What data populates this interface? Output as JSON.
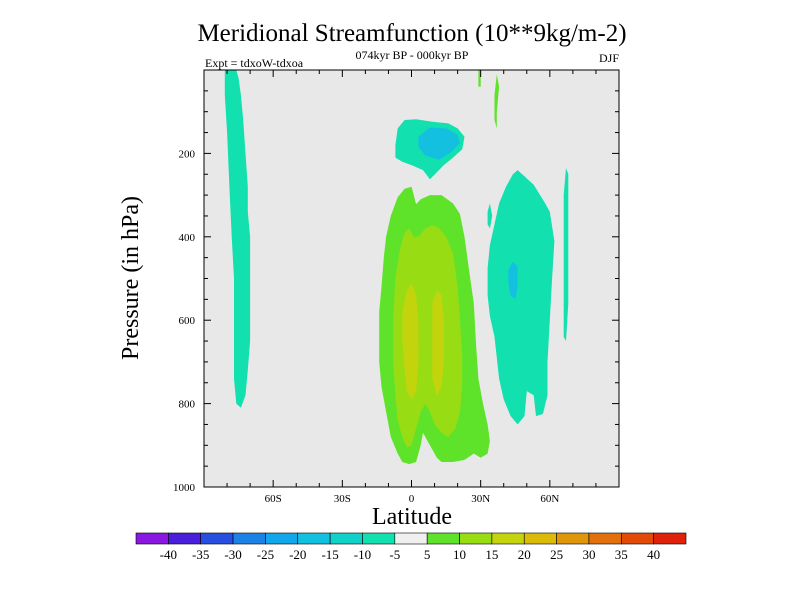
{
  "chart_data": {
    "type": "heatmap",
    "title": "Meridional Streamfunction (10**9kg/m-2)",
    "subtitle": "074kyr BP - 000kyr BP",
    "experiment_label": "Expt = tdxoW-tdxoa",
    "season": "DJF",
    "xlabel": "Latitude",
    "ylabel": "Pressure (in hPa)",
    "xlim": [
      -90,
      90
    ],
    "ylim": [
      1000,
      0
    ],
    "x_ticks": [
      {
        "value": -60,
        "label": "60S"
      },
      {
        "value": -30,
        "label": "30S"
      },
      {
        "value": 0,
        "label": "0"
      },
      {
        "value": 30,
        "label": "30N"
      },
      {
        "value": 60,
        "label": "60N"
      }
    ],
    "y_ticks": [
      {
        "value": 200,
        "label": "200"
      },
      {
        "value": 400,
        "label": "400"
      },
      {
        "value": 600,
        "label": "600"
      },
      {
        "value": 800,
        "label": "800"
      },
      {
        "value": 1000,
        "label": "1000"
      }
    ],
    "background_color": "#e8e8e8",
    "colorbar": {
      "levels": [
        -40,
        -35,
        -30,
        -25,
        -20,
        -15,
        -10,
        -5,
        5,
        10,
        15,
        20,
        25,
        30,
        35,
        40
      ],
      "labels": [
        "-40",
        "-35",
        "-30",
        "-25",
        "-20",
        "-15",
        "-10",
        "-5",
        "5",
        "10",
        "15",
        "20",
        "25",
        "30",
        "35",
        "40"
      ],
      "colors": [
        "#8a18e0",
        "#4a1fdc",
        "#2850e0",
        "#1c82e6",
        "#12a6ea",
        "#14c0e0",
        "#10d2c8",
        "#12e0ae",
        "#f0f0f0",
        "#5ee32a",
        "#98dc14",
        "#c4d40c",
        "#dcba08",
        "#e0960a",
        "#e2700c",
        "#e24a08",
        "#e0220a"
      ]
    },
    "contour_regions": [
      {
        "value": -10,
        "color": "#12e0ae",
        "points": [
          [
            -81,
            0
          ],
          [
            -76,
            0
          ],
          [
            -75,
            20
          ],
          [
            -74,
            60
          ],
          [
            -73,
            120
          ],
          [
            -72,
            200
          ],
          [
            -71,
            280
          ],
          [
            -71,
            340
          ],
          [
            -70,
            400
          ],
          [
            -70,
            550
          ],
          [
            -70,
            650
          ],
          [
            -71,
            720
          ],
          [
            -72,
            780
          ],
          [
            -74,
            810
          ],
          [
            -76,
            800
          ],
          [
            -77,
            740
          ],
          [
            -77,
            650
          ],
          [
            -77,
            500
          ],
          [
            -78,
            400
          ],
          [
            -79,
            280
          ],
          [
            -80,
            150
          ],
          [
            -81,
            60
          ]
        ]
      },
      {
        "value": -10,
        "color": "#12e0ae",
        "points": [
          [
            -7,
            180
          ],
          [
            -6,
            140
          ],
          [
            -3,
            120
          ],
          [
            2,
            118
          ],
          [
            9,
            124
          ],
          [
            16,
            128
          ],
          [
            20,
            140
          ],
          [
            23,
            160
          ],
          [
            22,
            190
          ],
          [
            18,
            210
          ],
          [
            14,
            228
          ],
          [
            11,
            245
          ],
          [
            8,
            262
          ],
          [
            5,
            240
          ],
          [
            0,
            228
          ],
          [
            -4,
            220
          ],
          [
            -7,
            210
          ]
        ]
      },
      {
        "value": -15,
        "color": "#14c0e0",
        "points": [
          [
            3,
            160
          ],
          [
            8,
            138
          ],
          [
            15,
            140
          ],
          [
            20,
            155
          ],
          [
            21,
            175
          ],
          [
            17,
            198
          ],
          [
            12,
            215
          ],
          [
            6,
            205
          ],
          [
            3,
            185
          ]
        ]
      },
      {
        "value": -10,
        "color": "#12e0ae",
        "points": [
          [
            33,
            475
          ],
          [
            34,
            420
          ],
          [
            36,
            370
          ],
          [
            38,
            320
          ],
          [
            41,
            280
          ],
          [
            44,
            250
          ],
          [
            46,
            240
          ],
          [
            48,
            250
          ],
          [
            53,
            275
          ],
          [
            58,
            320
          ],
          [
            60,
            340
          ],
          [
            62,
            410
          ],
          [
            61,
            500
          ],
          [
            60,
            600
          ],
          [
            59,
            700
          ],
          [
            59,
            780
          ],
          [
            57,
            825
          ],
          [
            54,
            830
          ],
          [
            53,
            780
          ],
          [
            50,
            770
          ],
          [
            49,
            830
          ],
          [
            46,
            850
          ],
          [
            43,
            830
          ],
          [
            40,
            790
          ],
          [
            38,
            740
          ],
          [
            37,
            690
          ],
          [
            36,
            640
          ],
          [
            34,
            590
          ],
          [
            33,
            540
          ]
        ]
      },
      {
        "value": -15,
        "color": "#14c0e0",
        "points": [
          [
            42,
            480
          ],
          [
            44,
            460
          ],
          [
            46,
            470
          ],
          [
            46,
            520
          ],
          [
            45,
            550
          ],
          [
            43,
            540
          ],
          [
            42,
            510
          ]
        ]
      },
      {
        "value": -10,
        "color": "#12e0ae",
        "points": [
          [
            67,
            235
          ],
          [
            68,
            250
          ],
          [
            68,
            400
          ],
          [
            68,
            560
          ],
          [
            67,
            650
          ],
          [
            66,
            640
          ],
          [
            66,
            400
          ],
          [
            66,
            300
          ]
        ]
      },
      {
        "value": -10,
        "color": "#12e0ae",
        "points": [
          [
            33,
            340
          ],
          [
            34,
            320
          ],
          [
            35,
            350
          ],
          [
            34,
            380
          ],
          [
            33,
            370
          ]
        ]
      },
      {
        "value": 5,
        "color": "#5ee32a",
        "points": [
          [
            29,
            0
          ],
          [
            30,
            0
          ],
          [
            30,
            40
          ],
          [
            29,
            40
          ]
        ]
      },
      {
        "value": 5,
        "color": "#5ee32a",
        "points": [
          [
            37,
            10
          ],
          [
            38,
            40
          ],
          [
            37,
            100
          ],
          [
            37,
            140
          ],
          [
            36,
            120
          ],
          [
            36,
            60
          ]
        ]
      },
      {
        "value": 5,
        "color": "#5ee32a",
        "points": [
          [
            -12,
            450
          ],
          [
            -11,
            400
          ],
          [
            -9,
            350
          ],
          [
            -6,
            305
          ],
          [
            -3,
            285
          ],
          [
            0,
            280
          ],
          [
            1,
            300
          ],
          [
            2,
            322
          ],
          [
            4,
            310
          ],
          [
            8,
            300
          ],
          [
            13,
            300
          ],
          [
            18,
            320
          ],
          [
            21,
            345
          ],
          [
            23,
            400
          ],
          [
            25,
            480
          ],
          [
            27,
            560
          ],
          [
            28,
            660
          ],
          [
            29,
            740
          ],
          [
            31,
            800
          ],
          [
            33,
            850
          ],
          [
            34,
            890
          ],
          [
            33,
            920
          ],
          [
            30,
            930
          ],
          [
            27,
            920
          ],
          [
            23,
            935
          ],
          [
            18,
            940
          ],
          [
            13,
            940
          ],
          [
            11,
            930
          ],
          [
            9,
            910
          ],
          [
            7,
            890
          ],
          [
            5,
            870
          ],
          [
            4,
            900
          ],
          [
            2,
            940
          ],
          [
            -1,
            945
          ],
          [
            -4,
            940
          ],
          [
            -6,
            920
          ],
          [
            -9,
            880
          ],
          [
            -11,
            820
          ],
          [
            -13,
            760
          ],
          [
            -14,
            700
          ],
          [
            -14,
            640
          ],
          [
            -14,
            580
          ],
          [
            -13,
            520
          ]
        ]
      },
      {
        "value": 10,
        "color": "#98dc14",
        "points": [
          [
            -7,
            500
          ],
          [
            -5,
            430
          ],
          [
            -3,
            390
          ],
          [
            -1,
            380
          ],
          [
            1,
            400
          ],
          [
            3,
            400
          ],
          [
            6,
            380
          ],
          [
            9,
            372
          ],
          [
            12,
            380
          ],
          [
            15,
            400
          ],
          [
            18,
            440
          ],
          [
            20,
            520
          ],
          [
            21,
            600
          ],
          [
            22,
            680
          ],
          [
            22,
            760
          ],
          [
            21,
            820
          ],
          [
            19,
            860
          ],
          [
            16,
            880
          ],
          [
            13,
            870
          ],
          [
            10,
            850
          ],
          [
            8,
            820
          ],
          [
            6,
            800
          ],
          [
            4,
            820
          ],
          [
            2,
            860
          ],
          [
            0,
            900
          ],
          [
            -2,
            905
          ],
          [
            -4,
            880
          ],
          [
            -6,
            840
          ],
          [
            -7,
            780
          ],
          [
            -8,
            700
          ],
          [
            -8,
            600
          ]
        ]
      },
      {
        "value": 15,
        "color": "#c4d40c",
        "points": [
          [
            -4,
            580
          ],
          [
            -2,
            530
          ],
          [
            0,
            510
          ],
          [
            2,
            540
          ],
          [
            3,
            600
          ],
          [
            3,
            700
          ],
          [
            2,
            770
          ],
          [
            0,
            790
          ],
          [
            -2,
            770
          ],
          [
            -3,
            720
          ],
          [
            -4,
            650
          ]
        ]
      },
      {
        "value": 15,
        "color": "#c4d40c",
        "points": [
          [
            9,
            560
          ],
          [
            11,
            530
          ],
          [
            13,
            540
          ],
          [
            14,
            600
          ],
          [
            14,
            700
          ],
          [
            13,
            760
          ],
          [
            11,
            780
          ],
          [
            9,
            740
          ],
          [
            9,
            650
          ]
        ]
      }
    ]
  }
}
